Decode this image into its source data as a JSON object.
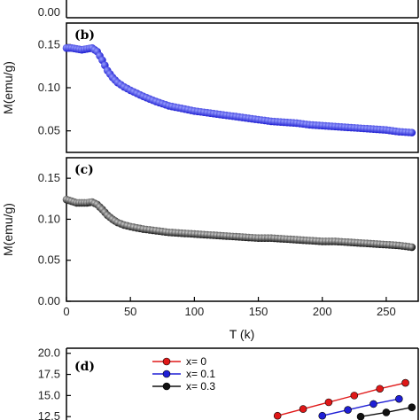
{
  "colors": {
    "blue": "#1f1fd6",
    "black": "#111111",
    "red": "#e01818",
    "axis": "#000000"
  },
  "chart_data": [
    {
      "panel_label": "(b)",
      "type": "scatter",
      "marker_color": "#1f1fd6",
      "ylabel": "M(emu/g)",
      "ylim": [
        0.025,
        0.175
      ],
      "yticks": [
        0.05,
        0.1,
        0.15
      ],
      "ytick_labels": [
        "0.05",
        "0.10",
        "0.15"
      ],
      "xlim": [
        0,
        275
      ],
      "x": [
        0,
        4,
        8,
        12,
        16,
        20,
        24,
        28,
        32,
        36,
        40,
        45,
        50,
        60,
        70,
        80,
        90,
        100,
        110,
        120,
        130,
        140,
        150,
        160,
        170,
        180,
        190,
        200,
        210,
        220,
        230,
        240,
        250,
        260,
        270
      ],
      "y": [
        0.146,
        0.146,
        0.145,
        0.144,
        0.145,
        0.146,
        0.142,
        0.132,
        0.12,
        0.112,
        0.106,
        0.101,
        0.097,
        0.09,
        0.084,
        0.079,
        0.076,
        0.073,
        0.071,
        0.069,
        0.067,
        0.065,
        0.063,
        0.061,
        0.06,
        0.059,
        0.057,
        0.056,
        0.055,
        0.054,
        0.053,
        0.052,
        0.051,
        0.049,
        0.048
      ]
    },
    {
      "panel_label": "(c)",
      "type": "scatter",
      "marker_color": "#111111",
      "ylabel": "M(emu/g)",
      "ylim": [
        0.0,
        0.175
      ],
      "yticks": [
        0.0,
        0.05,
        0.1,
        0.15
      ],
      "ytick_labels": [
        "0.00",
        "0.05",
        "0.10",
        "0.15"
      ],
      "xlim": [
        0,
        275
      ],
      "xticks": [
        0,
        50,
        100,
        150,
        200,
        250
      ],
      "xtick_labels": [
        "0",
        "50",
        "100",
        "150",
        "200",
        "250"
      ],
      "xlabel": "T (k)",
      "x": [
        0,
        4,
        8,
        12,
        16,
        20,
        24,
        28,
        32,
        36,
        40,
        45,
        50,
        60,
        70,
        80,
        90,
        100,
        110,
        120,
        130,
        140,
        150,
        160,
        170,
        180,
        190,
        200,
        210,
        220,
        230,
        240,
        250,
        260,
        270
      ],
      "y": [
        0.124,
        0.122,
        0.12,
        0.12,
        0.12,
        0.121,
        0.118,
        0.112,
        0.105,
        0.1,
        0.096,
        0.093,
        0.091,
        0.088,
        0.086,
        0.084,
        0.083,
        0.082,
        0.081,
        0.08,
        0.079,
        0.078,
        0.077,
        0.077,
        0.076,
        0.075,
        0.074,
        0.073,
        0.073,
        0.072,
        0.071,
        0.07,
        0.069,
        0.068,
        0.066
      ]
    },
    {
      "panel_label": "(d)",
      "type": "line",
      "yticks": [
        12.5,
        15.0,
        17.5,
        20.0
      ],
      "ytick_labels": [
        "12.5",
        "15.0",
        "17.5",
        "20.0"
      ],
      "ylim": [
        12.1,
        20.6
      ],
      "xlim": [
        0,
        275
      ],
      "series": [
        {
          "name": "x= 0",
          "color": "#e01818",
          "x": [
            165,
            185,
            205,
            225,
            245,
            265
          ],
          "y": [
            12.6,
            13.4,
            14.2,
            15.0,
            15.8,
            16.5
          ]
        },
        {
          "name": "x= 0.1",
          "color": "#1f1fd6",
          "x": [
            200,
            220,
            240,
            260
          ],
          "y": [
            12.6,
            13.3,
            14.0,
            14.6
          ]
        },
        {
          "name": "x= 0.3",
          "color": "#111111",
          "x": [
            230,
            250,
            270
          ],
          "y": [
            12.5,
            13.0,
            13.6
          ]
        }
      ]
    }
  ],
  "top_panel_stub": {
    "ytick_label": "0.00"
  }
}
